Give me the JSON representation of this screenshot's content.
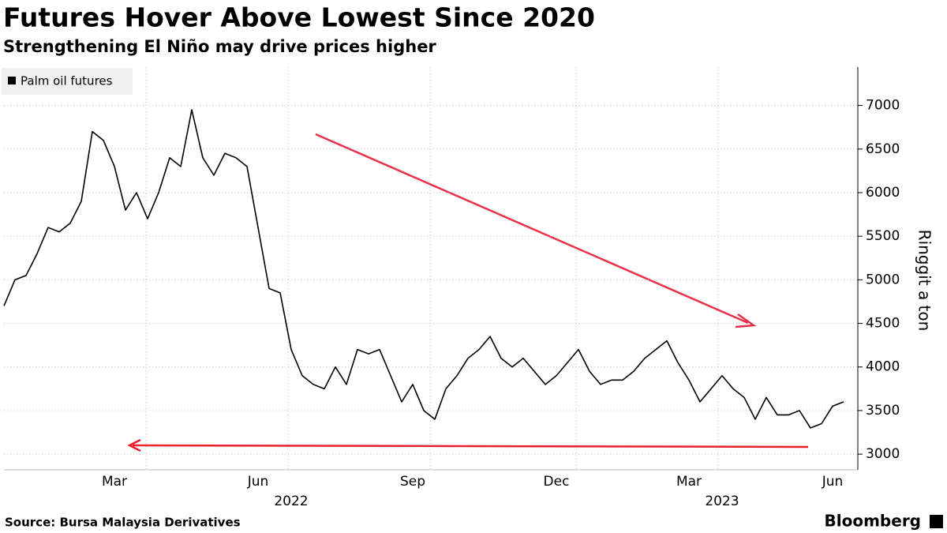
{
  "chart_data": {
    "type": "line",
    "title": "Futures Hover Above Lowest Since 2020",
    "subtitle": "Strengthening El Niño may drive prices higher",
    "y_label": "Ringgit a ton",
    "source": "Source: Bursa Malaysia Derivatives",
    "brand": "Bloomberg",
    "categories": [
      null,
      null,
      null,
      null,
      null,
      null,
      null,
      null,
      null,
      null,
      "Mar",
      null,
      null,
      null,
      null,
      null,
      null,
      null,
      null,
      null,
      null,
      null,
      null,
      "Jun",
      null,
      null,
      null,
      null,
      null,
      null,
      null,
      null,
      null,
      null,
      null,
      null,
      null,
      "Sep",
      null,
      null,
      null,
      null,
      null,
      null,
      null,
      null,
      null,
      null,
      null,
      null,
      "Dec",
      null,
      null,
      null,
      null,
      null,
      null,
      null,
      null,
      null,
      null,
      null,
      "Mar",
      null,
      null,
      null,
      null,
      null,
      null,
      null,
      null,
      null,
      null,
      null,
      null,
      "Jun",
      null
    ],
    "year_categories": [
      null,
      null,
      null,
      null,
      null,
      null,
      null,
      null,
      null,
      null,
      null,
      null,
      null,
      null,
      null,
      null,
      null,
      null,
      null,
      null,
      null,
      null,
      null,
      null,
      null,
      null,
      "2022",
      null,
      null,
      null,
      null,
      null,
      null,
      null,
      null,
      null,
      null,
      null,
      null,
      null,
      null,
      null,
      null,
      null,
      null,
      null,
      null,
      null,
      null,
      null,
      null,
      null,
      null,
      null,
      null,
      null,
      null,
      null,
      null,
      null,
      null,
      null,
      null,
      null,
      null,
      "2023",
      null,
      null,
      null,
      null,
      null,
      null,
      null,
      null,
      null,
      null,
      null
    ],
    "series": [
      {
        "name": "Palm oil futures",
        "color": "#000000",
        "values": [
          4700,
          5000,
          5050,
          5300,
          5600,
          5550,
          5650,
          5900,
          6700,
          6600,
          6300,
          5800,
          6000,
          5700,
          6000,
          6400,
          6300,
          6950,
          6400,
          6200,
          6450,
          6400,
          6300,
          5600,
          4900,
          4850,
          4200,
          3900,
          3800,
          3750,
          4000,
          3800,
          4200,
          4150,
          4200,
          3900,
          3600,
          3800,
          3500,
          3400,
          3750,
          3900,
          4100,
          4200,
          4350,
          4100,
          4000,
          4100,
          3950,
          3800,
          3900,
          4050,
          4200,
          3950,
          3800,
          3850,
          3850,
          3950,
          4100,
          4200,
          4300,
          4050,
          3850,
          3600,
          3750,
          3900,
          3750,
          3650,
          3400,
          3650,
          3450,
          3450,
          3500,
          3300,
          3350,
          3550,
          3600
        ]
      }
    ],
    "ylim": [
      2820,
      7440
    ],
    "yticks": [
      3000,
      3500,
      4000,
      4500,
      5000,
      5500,
      6000,
      6500,
      7000
    ],
    "grid": true
  }
}
